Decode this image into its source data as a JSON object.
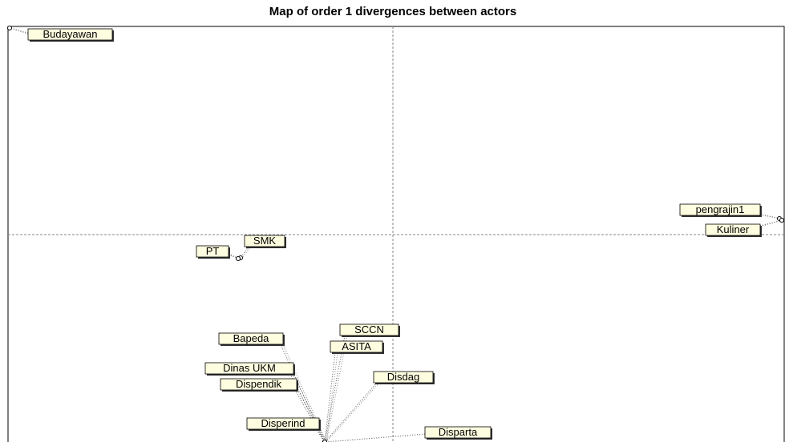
{
  "title": "Map of order 1 divergences between actors",
  "actors": [
    {
      "label": "Budayawan"
    },
    {
      "label": "pengrajin1"
    },
    {
      "label": "Kuliner"
    },
    {
      "label": "SMK"
    },
    {
      "label": "PT"
    },
    {
      "label": "SCCN"
    },
    {
      "label": "Bapeda"
    },
    {
      "label": "ASITA"
    },
    {
      "label": "Dinas UKM"
    },
    {
      "label": "Disdag"
    },
    {
      "label": "Dispendik"
    },
    {
      "label": "Disparta"
    },
    {
      "label": "Disperind"
    }
  ]
}
